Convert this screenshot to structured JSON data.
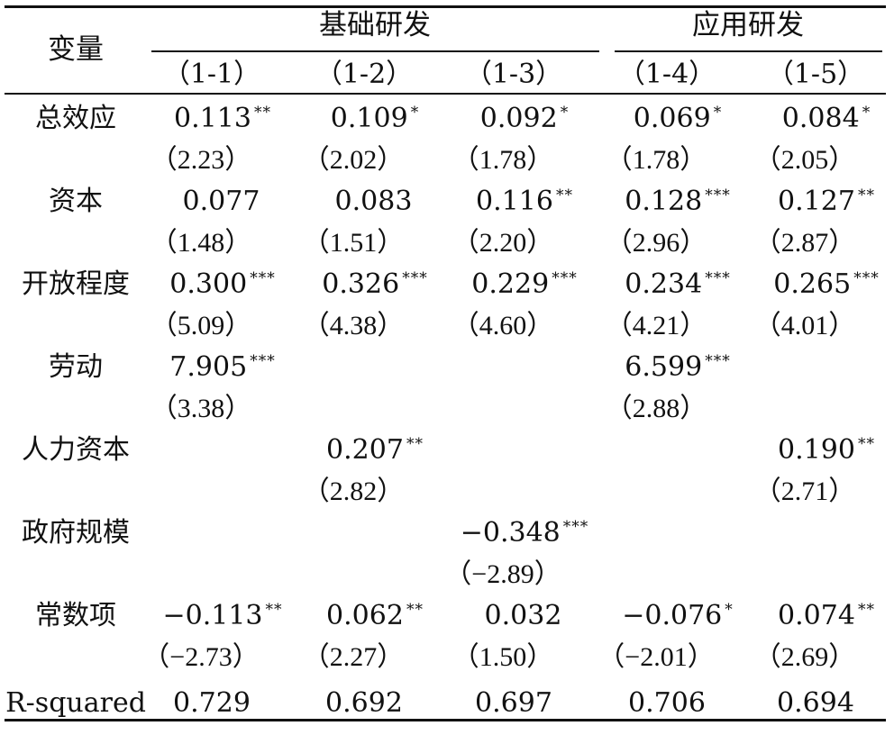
{
  "table": {
    "stub_header": "变量",
    "groups": [
      {
        "label": "基础研发"
      },
      {
        "label": "应用研发"
      }
    ],
    "columns": [
      "（1-1）",
      "（1-2）",
      "（1-3）",
      "（1-4）",
      "（1-5）"
    ],
    "rows": [
      {
        "label": "总效应",
        "coef": [
          {
            "v": "0.113",
            "s": "**"
          },
          {
            "v": "0.109",
            "s": "*"
          },
          {
            "v": "0.092",
            "s": "*"
          },
          {
            "v": "0.069",
            "s": "*"
          },
          {
            "v": "0.084",
            "s": "*"
          }
        ],
        "t": [
          "（2.23）",
          "（2.02）",
          "（1.78）",
          "（1.78）",
          "（2.05）"
        ]
      },
      {
        "label": "资本",
        "coef": [
          {
            "v": "0.077",
            "s": ""
          },
          {
            "v": "0.083",
            "s": ""
          },
          {
            "v": "0.116",
            "s": "**"
          },
          {
            "v": "0.128",
            "s": "***"
          },
          {
            "v": "0.127",
            "s": "**"
          }
        ],
        "t": [
          "（1.48）",
          "（1.51）",
          "（2.20）",
          "（2.96）",
          "（2.87）"
        ]
      },
      {
        "label": "开放程度",
        "coef": [
          {
            "v": "0.300",
            "s": "***"
          },
          {
            "v": "0.326",
            "s": "***"
          },
          {
            "v": "0.229",
            "s": "***"
          },
          {
            "v": "0.234",
            "s": "***"
          },
          {
            "v": "0.265",
            "s": "***"
          }
        ],
        "t": [
          "（5.09）",
          "（4.38）",
          "（4.60）",
          "（4.21）",
          "（4.01）"
        ]
      },
      {
        "label": "劳动",
        "coef": [
          {
            "v": "7.905",
            "s": "***"
          },
          null,
          null,
          {
            "v": "6.599",
            "s": "***"
          },
          null
        ],
        "t": [
          "（3.38）",
          "",
          "",
          "（2.88）",
          ""
        ]
      },
      {
        "label": "人力资本",
        "coef": [
          null,
          {
            "v": "0.207",
            "s": "**"
          },
          null,
          null,
          {
            "v": "0.190",
            "s": "**"
          }
        ],
        "t": [
          "",
          "（2.82）",
          "",
          "",
          "（2.71）"
        ]
      },
      {
        "label": "政府规模",
        "coef": [
          null,
          null,
          {
            "v": "−0.348",
            "s": "***"
          },
          null,
          null
        ],
        "t": [
          "",
          "",
          "（−2.89）",
          "",
          ""
        ]
      },
      {
        "label": "常数项",
        "coef": [
          {
            "v": "−0.113",
            "s": "**"
          },
          {
            "v": "0.062",
            "s": "**"
          },
          {
            "v": "0.032",
            "s": ""
          },
          {
            "v": "−0.076",
            "s": "*"
          },
          {
            "v": "0.074",
            "s": "**"
          }
        ],
        "t": [
          "（−2.73）",
          "（2.27）",
          "（1.50）",
          "（−2.01）",
          "（2.69）"
        ]
      }
    ],
    "r_squared": {
      "label": "R-squared",
      "values": [
        "0.729",
        "0.692",
        "0.697",
        "0.706",
        "0.694"
      ]
    }
  }
}
